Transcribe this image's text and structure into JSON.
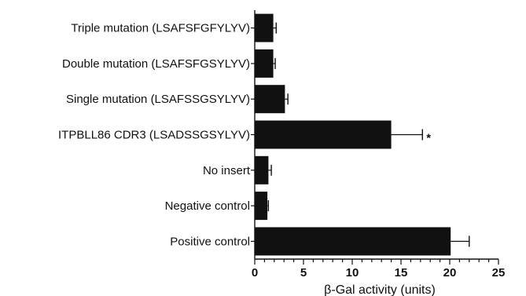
{
  "chart_data": {
    "type": "bar",
    "orientation": "horizontal",
    "title": "",
    "xlabel": "β-Gal activity (units)",
    "ylabel": "",
    "xlim": [
      0,
      25
    ],
    "xticks": [
      0,
      5,
      10,
      15,
      20,
      25
    ],
    "grid": false,
    "categories": [
      "Triple mutation (LSAFSFGFYLYV)",
      "Double mutation (LSAFSFGSYLYV)",
      "Single mutation (LSAFSSGSYLYV)",
      "ITPBLL86 CDR3 (LSADSSGSYLYV)",
      "No insert",
      "Negative control",
      "Positive control"
    ],
    "values": [
      1.9,
      1.9,
      3.1,
      14.0,
      1.4,
      1.3,
      20.1
    ],
    "errors": [
      0.3,
      0.2,
      0.3,
      3.2,
      0.3,
      0.1,
      1.9
    ],
    "annotations": [
      {
        "category": "ITPBLL86 CDR3 (LSADSSGSYLYV)",
        "text": "*"
      }
    ],
    "colors": {
      "bar": "#111111",
      "axis": "#111111"
    }
  }
}
